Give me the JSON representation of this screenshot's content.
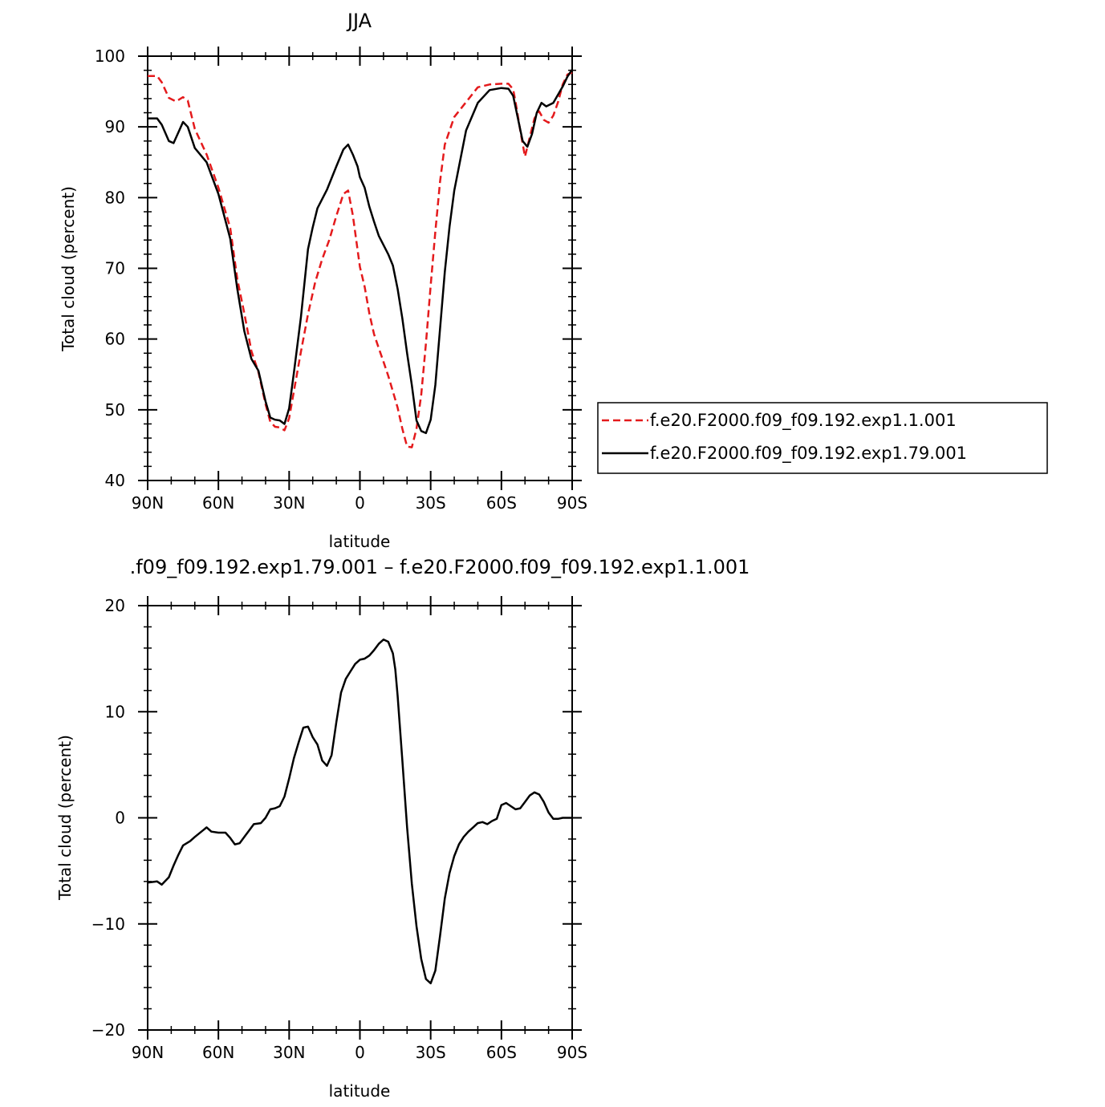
{
  "chart_data": [
    {
      "type": "line",
      "title": "JJA",
      "xlabel": "latitude",
      "ylabel": "Total cloud (percent)",
      "xlim": [
        90,
        -90
      ],
      "ylim": [
        40,
        100
      ],
      "xticks": [
        90,
        60,
        30,
        0,
        -30,
        -60,
        -90
      ],
      "xtick_labels": [
        "90N",
        "60N",
        "30N",
        "0",
        "30S",
        "60S",
        "90S"
      ],
      "yticks": [
        40,
        50,
        60,
        70,
        80,
        90,
        100
      ],
      "ytick_labels": [
        "40",
        "50",
        "60",
        "70",
        "80",
        "90",
        "100"
      ],
      "legend_position": "right",
      "series": [
        {
          "name": "f.e20.F2000.f09_f09.192.exp1.1.001",
          "color": "#e41a1c",
          "dash": "dashed",
          "x": [
            90,
            86,
            84,
            81,
            78,
            75,
            73,
            70,
            65,
            60,
            55,
            52,
            49,
            46,
            43,
            40,
            38,
            36,
            34,
            32,
            30,
            28,
            25,
            22,
            19,
            16,
            13,
            10,
            7,
            5,
            3,
            0,
            -2,
            -4,
            -6,
            -8,
            -10,
            -12,
            -14,
            -16,
            -18,
            -20,
            -22,
            -24,
            -26,
            -28,
            -30,
            -32,
            -34,
            -36,
            -40,
            -45,
            -50,
            -55,
            -60,
            -63,
            -65,
            -66,
            -68,
            -70,
            -72,
            -74,
            -76,
            -78,
            -80,
            -82,
            -84,
            -86,
            -88,
            -90
          ],
          "y": [
            97.2,
            97.2,
            96.3,
            94.1,
            93.6,
            94.2,
            93.7,
            89.7,
            86.1,
            81.4,
            75.7,
            68.5,
            63.6,
            58.3,
            55.3,
            50.8,
            48.3,
            47.6,
            47.5,
            47.1,
            48.8,
            52.6,
            58.2,
            63.5,
            68.0,
            71.3,
            74.0,
            77.4,
            80.5,
            81.0,
            77.5,
            70.2,
            67.4,
            63.6,
            60.7,
            58.7,
            56.8,
            54.8,
            52.6,
            50.3,
            47.3,
            44.8,
            44.7,
            47.3,
            52.1,
            59.4,
            67.6,
            75.2,
            82.3,
            87.5,
            91.4,
            93.5,
            95.6,
            96.0,
            96.1,
            96.1,
            95.3,
            93.5,
            89.5,
            85.8,
            88.5,
            91.2,
            92.2,
            91.0,
            90.6,
            91.6,
            93.5,
            96.0,
            97.4,
            97.7
          ]
        },
        {
          "name": "f.e20.F2000.f09_f09.192.exp1.79.001",
          "color": "#000000",
          "dash": "solid",
          "x": [
            90,
            86,
            84,
            81,
            79,
            77,
            75,
            73,
            70,
            65,
            60,
            55,
            52,
            49,
            46,
            43,
            40,
            38,
            36,
            34,
            32,
            30,
            28,
            25,
            22,
            20,
            18,
            14,
            10,
            7,
            5,
            3,
            1,
            0,
            -2,
            -4,
            -6,
            -8,
            -10,
            -12,
            -14,
            -16,
            -18,
            -20,
            -22,
            -24,
            -26,
            -28,
            -30,
            -32,
            -34,
            -36,
            -38,
            -40,
            -45,
            -50,
            -55,
            -60,
            -63,
            -65,
            -67,
            -69,
            -71,
            -73,
            -75,
            -77,
            -79,
            -82,
            -86,
            -88,
            -90
          ],
          "y": [
            91.2,
            91.2,
            90.3,
            88.0,
            87.7,
            89.2,
            90.7,
            90.0,
            87.0,
            85.0,
            80.5,
            74.2,
            67.1,
            61.1,
            57.2,
            55.5,
            51.2,
            48.9,
            48.6,
            48.5,
            48.0,
            50.2,
            55.2,
            63.1,
            72.7,
            75.8,
            78.5,
            81.1,
            84.4,
            86.8,
            87.5,
            86.1,
            84.4,
            82.9,
            81.4,
            78.7,
            76.6,
            74.6,
            73.3,
            72.0,
            70.4,
            67.1,
            62.9,
            58.0,
            53.5,
            48.5,
            47.0,
            46.7,
            48.6,
            53.5,
            61.5,
            69.5,
            75.9,
            81.0,
            89.5,
            93.4,
            95.2,
            95.5,
            95.4,
            94.4,
            91.2,
            88.0,
            87.2,
            89.0,
            92.0,
            93.4,
            92.9,
            93.4,
            95.7,
            97.1,
            98.1
          ]
        }
      ]
    },
    {
      "type": "line",
      "title": ".f09_f09.192.exp1.79.001 – f.e20.F2000.f09_f09.192.exp1.1.001",
      "xlabel": "latitude",
      "ylabel": "Total cloud (percent)",
      "xlim": [
        90,
        -90
      ],
      "ylim": [
        -20,
        20
      ],
      "xticks": [
        90,
        60,
        30,
        0,
        -30,
        -60,
        -90
      ],
      "xtick_labels": [
        "90N",
        "60N",
        "30N",
        "0",
        "30S",
        "60S",
        "90S"
      ],
      "yticks": [
        -20,
        -10,
        0,
        10,
        20
      ],
      "ytick_labels": [
        "−20",
        "−10",
        "0",
        "10",
        "20"
      ],
      "series": [
        {
          "color": "#000000",
          "dash": "solid",
          "x": [
            90,
            86,
            84,
            81,
            79,
            77,
            75,
            72,
            70,
            65,
            63,
            60,
            57,
            55,
            53,
            51,
            49,
            47,
            45,
            42,
            40,
            38,
            36,
            34,
            32,
            30,
            28,
            26,
            24,
            22,
            20,
            18,
            16,
            14,
            12,
            10,
            8,
            6,
            4,
            2,
            0,
            -2,
            -4,
            -6,
            -8,
            -10,
            -12,
            -14,
            -15,
            -16,
            -18,
            -20,
            -22,
            -24,
            -26,
            -28,
            -30,
            -32,
            -34,
            -36,
            -38,
            -40,
            -42,
            -44,
            -46,
            -48,
            -50,
            -52,
            -54,
            -56,
            -58,
            -60,
            -62,
            -64,
            -66,
            -68,
            -70,
            -72,
            -74,
            -76,
            -78,
            -80,
            -82,
            -84,
            -86,
            -88,
            -90
          ],
          "y": [
            -6.1,
            -6.0,
            -6.3,
            -5.6,
            -4.5,
            -3.5,
            -2.6,
            -2.2,
            -1.8,
            -0.9,
            -1.3,
            -1.4,
            -1.4,
            -1.9,
            -2.5,
            -2.4,
            -1.8,
            -1.2,
            -0.6,
            -0.5,
            0.0,
            0.8,
            0.9,
            1.1,
            2.0,
            3.7,
            5.6,
            7.1,
            8.5,
            8.6,
            7.6,
            6.9,
            5.4,
            4.9,
            5.9,
            9.0,
            11.8,
            13.1,
            13.8,
            14.5,
            14.9,
            15.0,
            15.3,
            15.8,
            16.4,
            16.8,
            16.6,
            15.5,
            14.0,
            11.5,
            5.4,
            -0.9,
            -6.2,
            -10.2,
            -13.3,
            -15.2,
            -15.6,
            -14.4,
            -11.1,
            -7.6,
            -5.2,
            -3.6,
            -2.5,
            -1.8,
            -1.3,
            -0.9,
            -0.5,
            -0.4,
            -0.6,
            -0.3,
            -0.1,
            1.2,
            1.4,
            1.1,
            0.8,
            0.9,
            1.5,
            2.1,
            2.4,
            2.2,
            1.5,
            0.5,
            -0.1,
            -0.1,
            0.0,
            0.0,
            0.0
          ]
        }
      ]
    }
  ]
}
